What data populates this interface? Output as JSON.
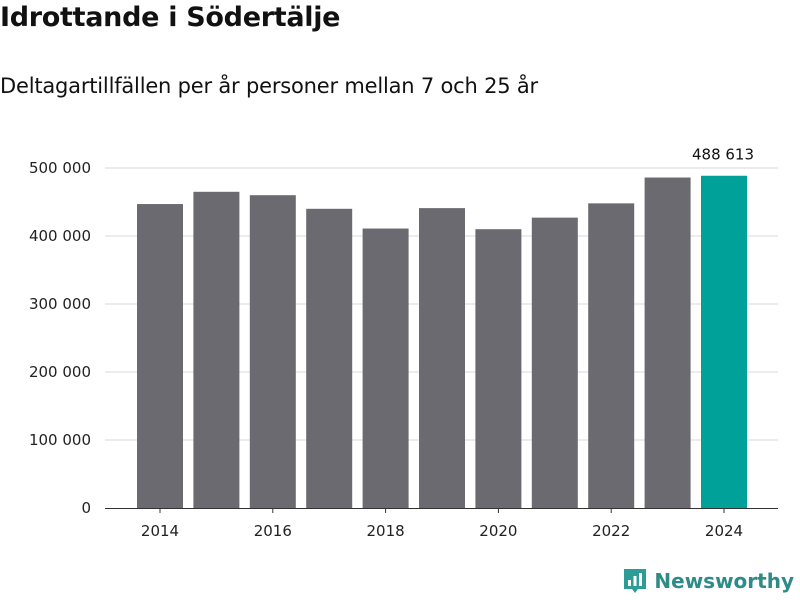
{
  "title": "Idrottande i Södertälje",
  "subtitle": "Deltagartillfällen per år personer mellan 7 och 25 år",
  "brand": {
    "name": "Newsworthy",
    "color": "#2e9c96"
  },
  "colors": {
    "bar": "#6b6a70",
    "highlight": "#00a199",
    "grid": "#d9d9d9"
  },
  "chart_data": {
    "type": "bar",
    "categories": [
      "2014",
      "2015",
      "2016",
      "2017",
      "2018",
      "2019",
      "2020",
      "2021",
      "2022",
      "2023",
      "2024"
    ],
    "values": [
      447000,
      465000,
      460000,
      440000,
      411000,
      441000,
      410000,
      427000,
      448000,
      486000,
      488613
    ],
    "highlight_index": 10,
    "annotation": {
      "index": 10,
      "label": "488 613"
    },
    "ylim": [
      0,
      500000
    ],
    "yticks": [
      0,
      100000,
      200000,
      300000,
      400000,
      500000
    ],
    "ytick_labels": [
      "0",
      "100 000",
      "200 000",
      "300 000",
      "400 000",
      "500 000"
    ],
    "xtick_labels": [
      "2014",
      "2016",
      "2018",
      "2020",
      "2022",
      "2024"
    ],
    "xlabel": "",
    "ylabel": "",
    "grid": true
  }
}
